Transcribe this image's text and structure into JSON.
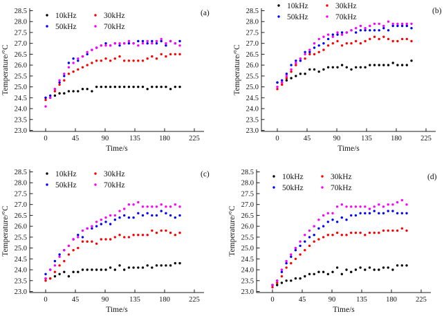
{
  "figure": {
    "x_label": "Time/s",
    "y_label": "Temperature/°C",
    "panel_tags": [
      "(a)",
      "(b)",
      "(c)",
      "(d)"
    ],
    "legend_entries": [
      "10kHz",
      "30kHz",
      "50kHz",
      "70kHz"
    ],
    "series_colors": {
      "10kHz": "#000000",
      "30kHz": "#ff0000",
      "50kHz": "#0000ff",
      "70kHz": "#ff00ff"
    },
    "axis_color": "#1a1a1a"
  },
  "chart_data": [
    {
      "type": "scatter",
      "tag": "(a)",
      "xlabel": "Time/s",
      "ylabel": "Temperature/°C",
      "xlim": [
        0,
        225
      ],
      "ylim": [
        23.0,
        28.5
      ],
      "x_ticks": [
        0,
        45,
        90,
        135,
        180,
        225
      ],
      "y_ticks": [
        23.0,
        23.5,
        24.0,
        24.5,
        25.0,
        25.5,
        26.0,
        26.5,
        27.0,
        27.5,
        28.0,
        28.5
      ],
      "grid": false,
      "legend_position": "top-left-inside",
      "x": [
        0,
        7,
        14,
        21,
        28,
        35,
        42,
        49,
        56,
        63,
        70,
        77,
        84,
        91,
        98,
        105,
        112,
        119,
        126,
        133,
        140,
        147,
        154,
        161,
        168,
        175,
        182,
        189,
        196,
        203
      ],
      "series": [
        {
          "name": "10kHz",
          "color": "#000000",
          "values": [
            24.5,
            24.5,
            24.6,
            24.7,
            24.7,
            24.8,
            24.8,
            24.8,
            24.9,
            24.9,
            24.8,
            25.0,
            25.0,
            25.0,
            25.0,
            25.0,
            25.0,
            25.0,
            25.0,
            25.0,
            25.0,
            25.0,
            24.9,
            25.0,
            25.0,
            25.0,
            25.0,
            24.9,
            25.0,
            25.0
          ]
        },
        {
          "name": "30kHz",
          "color": "#ff0000",
          "values": [
            24.4,
            24.5,
            24.8,
            25.1,
            25.3,
            25.6,
            25.7,
            25.8,
            25.9,
            26.0,
            26.1,
            26.2,
            26.2,
            26.3,
            26.2,
            26.3,
            26.4,
            26.2,
            26.2,
            26.2,
            26.2,
            26.2,
            26.3,
            26.4,
            26.3,
            26.5,
            26.4,
            26.5,
            26.5,
            26.5
          ]
        },
        {
          "name": "50kHz",
          "color": "#0000ff",
          "values": [
            24.5,
            24.6,
            24.9,
            25.2,
            25.5,
            26.1,
            26.3,
            26.2,
            26.4,
            26.5,
            26.7,
            26.8,
            26.9,
            27.0,
            26.9,
            27.0,
            26.9,
            27.0,
            27.0,
            27.0,
            27.1,
            27.1,
            27.0,
            27.1,
            27.0,
            27.1,
            26.9,
            27.1,
            27.0,
            27.1
          ]
        },
        {
          "name": "70kHz",
          "color": "#ff00ff",
          "values": [
            24.1,
            24.5,
            24.9,
            25.3,
            25.6,
            25.9,
            26.1,
            26.3,
            26.4,
            26.6,
            26.7,
            26.8,
            26.9,
            26.9,
            26.9,
            27.0,
            27.0,
            27.0,
            27.1,
            27.0,
            26.9,
            27.0,
            27.1,
            27.0,
            27.1,
            27.2,
            27.0,
            27.1,
            27.0,
            26.9
          ]
        }
      ]
    },
    {
      "type": "scatter",
      "tag": "(b)",
      "xlabel": "Time/s",
      "ylabel": "Temperature/°C",
      "xlim": [
        0,
        225
      ],
      "ylim": [
        23.0,
        28.5
      ],
      "x_ticks": [
        0,
        45,
        90,
        135,
        180,
        225
      ],
      "y_ticks": [
        23.0,
        23.5,
        24.0,
        24.5,
        25.0,
        25.5,
        26.0,
        26.5,
        27.0,
        27.5,
        28.0,
        28.5
      ],
      "grid": false,
      "legend_position": "top-left-inside",
      "x": [
        0,
        7,
        14,
        21,
        28,
        35,
        42,
        49,
        56,
        63,
        70,
        77,
        84,
        91,
        98,
        105,
        112,
        119,
        126,
        133,
        140,
        147,
        154,
        161,
        168,
        175,
        182,
        189,
        196,
        203
      ],
      "series": [
        {
          "name": "10kHz",
          "color": "#000000",
          "values": [
            25.2,
            25.2,
            25.3,
            25.4,
            25.5,
            25.6,
            25.6,
            25.8,
            25.8,
            25.7,
            25.8,
            25.9,
            25.9,
            25.9,
            26.0,
            25.9,
            25.8,
            25.9,
            25.9,
            25.9,
            26.0,
            26.0,
            26.0,
            26.0,
            26.0,
            26.1,
            26.0,
            26.0,
            26.0,
            26.2
          ]
        },
        {
          "name": "30kHz",
          "color": "#ff0000",
          "values": [
            24.9,
            25.1,
            25.4,
            25.7,
            26.0,
            26.2,
            26.3,
            26.5,
            26.5,
            26.6,
            26.7,
            26.9,
            27.0,
            27.1,
            26.9,
            27.0,
            27.0,
            27.1,
            27.0,
            27.1,
            27.2,
            27.3,
            27.2,
            27.3,
            27.2,
            27.1,
            27.1,
            27.2,
            27.2,
            27.1
          ]
        },
        {
          "name": "50kHz",
          "color": "#0000ff",
          "values": [
            25.2,
            25.3,
            25.6,
            26.0,
            26.2,
            26.2,
            26.6,
            26.6,
            26.8,
            26.9,
            27.0,
            27.2,
            27.4,
            27.4,
            27.5,
            27.5,
            27.6,
            27.5,
            27.6,
            27.6,
            27.6,
            27.6,
            27.6,
            27.7,
            27.6,
            27.8,
            27.8,
            27.8,
            27.8,
            27.7
          ]
        },
        {
          "name": "70kHz",
          "color": "#ff00ff",
          "values": [
            25.0,
            25.2,
            25.5,
            25.8,
            26.1,
            26.3,
            26.5,
            26.7,
            27.0,
            27.2,
            27.3,
            27.4,
            27.3,
            27.5,
            27.4,
            27.5,
            27.6,
            27.7,
            27.8,
            27.7,
            27.8,
            27.9,
            27.9,
            27.8,
            28.0,
            27.9,
            27.9,
            27.9,
            27.9,
            27.9
          ]
        }
      ]
    },
    {
      "type": "scatter",
      "tag": "(c)",
      "xlabel": "Time/s",
      "ylabel": "Temperature/°C",
      "xlim": [
        0,
        225
      ],
      "ylim": [
        23.0,
        28.5
      ],
      "x_ticks": [
        0,
        45,
        90,
        135,
        180,
        225
      ],
      "y_ticks": [
        23.0,
        23.5,
        24.0,
        24.5,
        25.0,
        25.5,
        26.0,
        26.5,
        27.0,
        27.5,
        28.0,
        28.5
      ],
      "grid": false,
      "legend_position": "top-left-inside",
      "x": [
        0,
        7,
        14,
        21,
        28,
        35,
        42,
        49,
        56,
        63,
        70,
        77,
        84,
        91,
        98,
        105,
        112,
        119,
        126,
        133,
        140,
        147,
        154,
        161,
        168,
        175,
        182,
        189,
        196,
        203
      ],
      "series": [
        {
          "name": "10kHz",
          "color": "#000000",
          "values": [
            23.6,
            23.6,
            23.7,
            23.8,
            23.9,
            23.7,
            23.9,
            23.9,
            24.0,
            24.0,
            24.0,
            24.0,
            24.0,
            24.0,
            24.1,
            24.0,
            24.2,
            24.0,
            24.1,
            24.1,
            24.1,
            24.1,
            24.2,
            24.1,
            24.2,
            24.2,
            24.2,
            24.2,
            24.3,
            24.3
          ]
        },
        {
          "name": "30kHz",
          "color": "#ff0000",
          "values": [
            23.5,
            23.6,
            23.9,
            24.2,
            24.4,
            24.7,
            24.9,
            25.0,
            25.3,
            25.3,
            25.3,
            25.2,
            25.4,
            25.4,
            25.4,
            25.5,
            25.6,
            25.5,
            25.5,
            25.6,
            25.6,
            25.6,
            25.6,
            25.8,
            25.7,
            25.8,
            25.8,
            25.7,
            25.6,
            25.7
          ]
        },
        {
          "name": "50kHz",
          "color": "#0000ff",
          "values": [
            23.8,
            24.0,
            24.4,
            24.7,
            24.9,
            25.1,
            25.4,
            25.6,
            25.5,
            25.9,
            25.9,
            26.0,
            26.1,
            26.2,
            26.1,
            26.3,
            26.4,
            26.5,
            26.4,
            26.4,
            26.6,
            26.5,
            26.6,
            26.5,
            26.5,
            26.7,
            26.6,
            26.5,
            26.4,
            26.5
          ]
        },
        {
          "name": "70kHz",
          "color": "#ff00ff",
          "values": [
            23.6,
            24.0,
            24.2,
            24.6,
            24.9,
            25.1,
            25.4,
            25.5,
            25.8,
            25.9,
            26.0,
            26.2,
            26.3,
            26.4,
            26.5,
            26.5,
            26.7,
            26.8,
            27.0,
            27.0,
            27.1,
            26.9,
            26.9,
            26.9,
            26.9,
            27.0,
            26.9,
            26.9,
            27.0,
            26.9
          ]
        }
      ]
    },
    {
      "type": "scatter",
      "tag": "(d)",
      "xlabel": "Time/s",
      "ylabel": "Temperature/°C",
      "xlim": [
        0,
        225
      ],
      "ylim": [
        23.0,
        28.5
      ],
      "x_ticks": [
        0,
        45,
        90,
        135,
        180,
        225
      ],
      "y_ticks": [
        23.0,
        23.5,
        24.0,
        24.5,
        25.0,
        25.5,
        26.0,
        26.5,
        27.0,
        27.5,
        28.0,
        28.5
      ],
      "grid": false,
      "legend_position": "top-left-inside",
      "x": [
        0,
        7,
        14,
        21,
        28,
        35,
        42,
        49,
        56,
        63,
        70,
        77,
        84,
        91,
        98,
        105,
        112,
        119,
        126,
        133,
        140,
        147,
        154,
        161,
        168,
        175,
        182,
        189,
        196,
        203
      ],
      "series": [
        {
          "name": "10kHz",
          "color": "#000000",
          "values": [
            23.3,
            23.3,
            23.4,
            23.5,
            23.5,
            23.6,
            23.6,
            23.7,
            23.8,
            23.8,
            23.9,
            23.9,
            23.8,
            23.9,
            24.1,
            23.8,
            24.0,
            23.9,
            24.0,
            24.1,
            24.0,
            24.1,
            24.0,
            24.0,
            24.1,
            24.1,
            24.0,
            24.2,
            24.2,
            24.2
          ]
        },
        {
          "name": "30kHz",
          "color": "#ff0000",
          "values": [
            23.2,
            23.4,
            23.7,
            24.1,
            24.3,
            24.5,
            24.7,
            24.9,
            25.1,
            25.3,
            25.4,
            25.5,
            25.6,
            25.6,
            25.7,
            25.6,
            25.6,
            25.7,
            25.7,
            25.7,
            25.6,
            25.7,
            25.7,
            25.7,
            25.8,
            25.8,
            25.8,
            25.8,
            25.9,
            25.8
          ]
        },
        {
          "name": "50kHz",
          "color": "#0000ff",
          "values": [
            23.3,
            23.5,
            23.9,
            24.3,
            24.6,
            24.9,
            25.1,
            25.3,
            25.5,
            25.6,
            25.9,
            26.0,
            26.2,
            26.3,
            26.2,
            26.4,
            26.3,
            26.5,
            26.5,
            26.6,
            26.6,
            26.6,
            26.7,
            26.6,
            26.6,
            26.7,
            26.7,
            26.6,
            26.6,
            26.6
          ]
        },
        {
          "name": "70kHz",
          "color": "#ff00ff",
          "values": [
            23.3,
            23.5,
            24.0,
            24.4,
            24.7,
            25.0,
            25.3,
            25.6,
            25.8,
            26.0,
            26.3,
            26.5,
            26.6,
            26.6,
            26.9,
            27.0,
            26.9,
            26.9,
            26.9,
            26.9,
            26.9,
            26.8,
            26.9,
            27.0,
            26.9,
            27.0,
            27.0,
            27.1,
            27.2,
            27.0
          ]
        }
      ]
    }
  ]
}
